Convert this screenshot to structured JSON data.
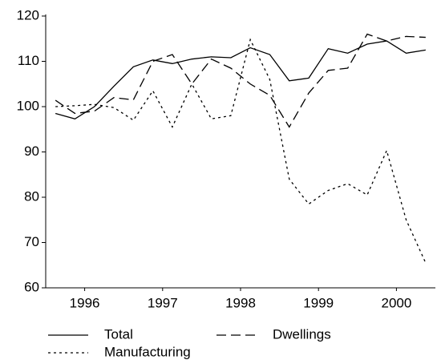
{
  "chart_data": {
    "type": "line",
    "x": [
      1996.125,
      1996.375,
      1996.625,
      1996.875,
      1997.125,
      1997.375,
      1997.625,
      1997.875,
      1998.125,
      1998.375,
      1998.625,
      1998.875,
      1999.125,
      1999.375,
      1999.625,
      1999.875,
      2000.125,
      2000.375,
      2000.625,
      2000.875
    ],
    "xlim": [
      1996,
      2001
    ],
    "xticks": [
      {
        "value": 1996.5,
        "label": "1996"
      },
      {
        "value": 1997.5,
        "label": "1997"
      },
      {
        "value": 1998.5,
        "label": "1998"
      },
      {
        "value": 1999.5,
        "label": "1999"
      },
      {
        "value": 2000.5,
        "label": "2000"
      }
    ],
    "ylim": [
      60,
      120
    ],
    "yticks": [
      60,
      70,
      80,
      90,
      100,
      110,
      120
    ],
    "series": [
      {
        "name": "Total",
        "color": "#000000",
        "dash": "solid",
        "values": [
          98.5,
          97.3,
          100,
          104.5,
          108.8,
          110.3,
          109.5,
          110.5,
          111,
          110.8,
          113,
          111.5,
          105.7,
          106.3,
          112.8,
          111.8,
          113.8,
          114.5,
          111.8,
          112.5
        ]
      },
      {
        "name": "Dwellings",
        "color": "#000000",
        "dash": "dashed",
        "values": [
          101.4,
          98.5,
          99,
          102,
          101.5,
          110,
          111.5,
          105,
          110.5,
          108.5,
          105,
          102.5,
          95.5,
          103,
          108,
          108.5,
          116,
          114.5,
          115.5,
          115.3
        ]
      },
      {
        "name": "Manufacturing",
        "color": "#000000",
        "dash": "dotted",
        "values": [
          100,
          100.2,
          100.5,
          99.8,
          97,
          103.5,
          95.5,
          105,
          97.3,
          98,
          114.8,
          106,
          84,
          78.5,
          81.5,
          83,
          80.5,
          90.3,
          75,
          65.5
        ]
      }
    ]
  }
}
